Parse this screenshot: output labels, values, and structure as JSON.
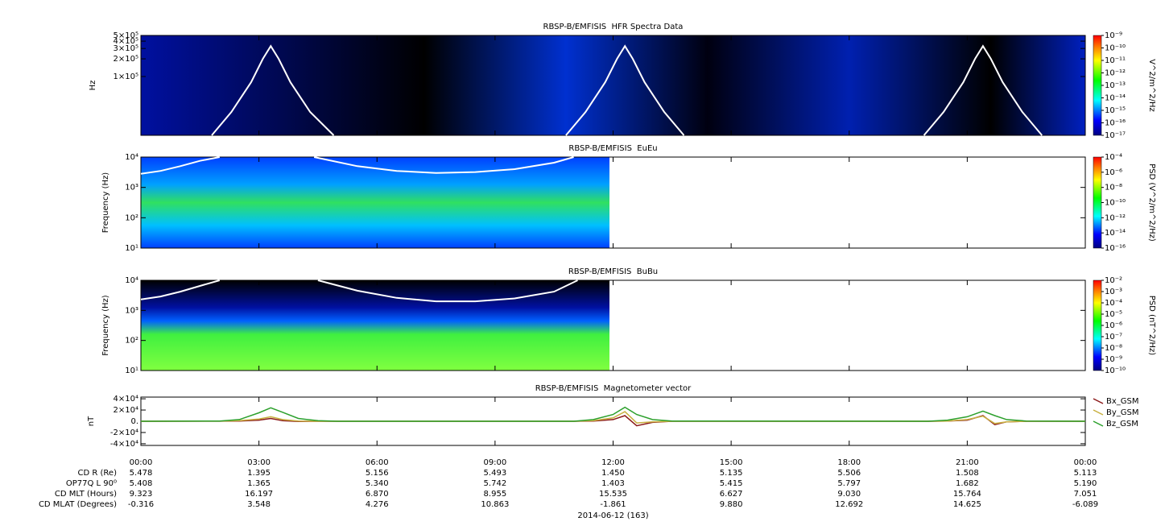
{
  "time_axis": {
    "xlim": [
      0,
      24
    ],
    "xticks": [
      {
        "value": 0,
        "label": "00:00"
      },
      {
        "value": 3,
        "label": "03:00"
      },
      {
        "value": 6,
        "label": "06:00"
      },
      {
        "value": 9,
        "label": "09:00"
      },
      {
        "value": 12,
        "label": "12:00"
      },
      {
        "value": 15,
        "label": "15:00"
      },
      {
        "value": 18,
        "label": "18:00"
      },
      {
        "value": 21,
        "label": "21:00"
      },
      {
        "value": 24,
        "label": "00:00"
      }
    ],
    "ephemeris": [
      {
        "label": "CD R (Re)",
        "values": [
          "5.478",
          "1.395",
          "5.156",
          "5.493",
          "1.450",
          "5.135",
          "5.506",
          "1.508",
          "5.113"
        ]
      },
      {
        "label": "OP77Q L 90⁰",
        "values": [
          "5.408",
          "1.365",
          "5.340",
          "5.742",
          "1.403",
          "5.415",
          "5.797",
          "1.682",
          "5.190"
        ]
      },
      {
        "label": "CD MLT (Hours)",
        "values": [
          "9.323",
          "16.197",
          "6.870",
          "8.955",
          "15.535",
          "6.627",
          "9.030",
          "15.764",
          "7.051"
        ]
      },
      {
        "label": "CD MLAT (Degrees)",
        "values": [
          "-0.316",
          "3.548",
          "4.276",
          "10.863",
          "-1.861",
          "9.880",
          "12.692",
          "14.625",
          "-6.089"
        ]
      }
    ],
    "date": "2014-06-12 (163)"
  },
  "chart_data": [
    {
      "type": "spectrogram",
      "title": "RBSP-B/EMFISIS  HFR Spectra Data",
      "ylabel": "Hz",
      "log_y": true,
      "ylim": [
        10000,
        500000
      ],
      "yticks": [
        {
          "value": 100000,
          "label": "1×10⁵"
        },
        {
          "value": 200000,
          "label": "2×10⁵"
        },
        {
          "value": 300000,
          "label": "3×10⁵"
        },
        {
          "value": 400000,
          "label": "4×10⁵"
        },
        {
          "value": 500000,
          "label": "5×10⁵"
        }
      ],
      "zlabel": "V^2/m^2/Hz",
      "zlim": [
        1e-17,
        1e-09
      ],
      "zticks": [
        {
          "value": 1e-09,
          "label": "10⁻⁹"
        },
        {
          "value": 1e-10,
          "label": "10⁻¹⁰"
        },
        {
          "value": 1e-11,
          "label": "10⁻¹¹"
        },
        {
          "value": 1e-12,
          "label": "10⁻¹²"
        },
        {
          "value": 1e-13,
          "label": "10⁻¹³"
        },
        {
          "value": 1e-14,
          "label": "10⁻¹⁴"
        },
        {
          "value": 1e-15,
          "label": "10⁻¹⁵"
        },
        {
          "value": 1e-16,
          "label": "10⁻¹⁶"
        },
        {
          "value": 1e-17,
          "label": "10⁻¹⁷"
        }
      ],
      "curve": {
        "color": "#ffffff",
        "x": [
          1.8,
          2.3,
          2.8,
          3.1,
          3.3,
          3.5,
          3.8,
          4.3,
          4.9,
          8,
          10.8,
          11.3,
          11.8,
          12.1,
          12.3,
          12.5,
          12.8,
          13.3,
          13.8,
          17,
          19.9,
          20.4,
          20.9,
          21.2,
          21.4,
          21.6,
          21.9,
          22.4,
          22.9
        ],
        "values": [
          10000,
          25000,
          80000,
          200000,
          330000,
          200000,
          80000,
          25000,
          10000,
          null,
          10000,
          25000,
          80000,
          200000,
          330000,
          200000,
          80000,
          25000,
          10000,
          null,
          10000,
          25000,
          80000,
          200000,
          330000,
          200000,
          80000,
          25000,
          10000
        ]
      }
    },
    {
      "type": "spectrogram",
      "title": "RBSP-B/EMFISIS  EuEu",
      "ylabel": "Frequency (Hz)",
      "log_y": true,
      "ylim": [
        10,
        10000
      ],
      "yticks": [
        {
          "value": 10,
          "label": "10¹"
        },
        {
          "value": 100,
          "label": "10²"
        },
        {
          "value": 1000,
          "label": "10³"
        },
        {
          "value": 10000,
          "label": "10⁴"
        }
      ],
      "zlabel": "PSD (V^2/m^2/Hz)",
      "zlim": [
        1e-16,
        0.0001
      ],
      "zticks": [
        {
          "value": 0.0001,
          "label": "10⁻⁴"
        },
        {
          "value": 1e-06,
          "label": "10⁻⁶"
        },
        {
          "value": 1e-08,
          "label": "10⁻⁸"
        },
        {
          "value": 1e-10,
          "label": "10⁻¹⁰"
        },
        {
          "value": 1e-12,
          "label": "10⁻¹²"
        },
        {
          "value": 1e-14,
          "label": "10⁻¹⁴"
        },
        {
          "value": 1e-16,
          "label": "10⁻¹⁶"
        }
      ],
      "curve": {
        "color": "#ffffff",
        "x": [
          0,
          0.5,
          1,
          1.5,
          2.0,
          3,
          4.4,
          5.5,
          6.5,
          7.5,
          8.5,
          9.5,
          10.5,
          11.0
        ],
        "values": [
          2800,
          3500,
          5000,
          7500,
          10000,
          null,
          10000,
          5000,
          3500,
          3000,
          3200,
          4000,
          6500,
          10000
        ]
      }
    },
    {
      "type": "spectrogram",
      "title": "RBSP-B/EMFISIS  BuBu",
      "ylabel": "Frequency (Hz)",
      "log_y": true,
      "ylim": [
        10,
        10000
      ],
      "yticks": [
        {
          "value": 10,
          "label": "10¹"
        },
        {
          "value": 100,
          "label": "10²"
        },
        {
          "value": 1000,
          "label": "10³"
        },
        {
          "value": 10000,
          "label": "10⁴"
        }
      ],
      "zlabel": "PSD (nT^2/Hz)",
      "zlim": [
        1e-10,
        0.01
      ],
      "zticks": [
        {
          "value": 0.01,
          "label": "10⁻²"
        },
        {
          "value": 0.001,
          "label": "10⁻³"
        },
        {
          "value": 0.0001,
          "label": "10⁻⁴"
        },
        {
          "value": 1e-05,
          "label": "10⁻⁵"
        },
        {
          "value": 1e-06,
          "label": "10⁻⁶"
        },
        {
          "value": 1e-07,
          "label": "10⁻⁷"
        },
        {
          "value": 1e-08,
          "label": "10⁻⁸"
        },
        {
          "value": 1e-09,
          "label": "10⁻⁹"
        },
        {
          "value": 1e-10,
          "label": "10⁻¹⁰"
        }
      ],
      "curve": {
        "color": "#ffffff",
        "x": [
          0,
          0.5,
          1,
          1.5,
          2.0,
          3,
          4.5,
          5.5,
          6.5,
          7.5,
          8.5,
          9.5,
          10.5,
          11.1
        ],
        "values": [
          2300,
          2900,
          4200,
          6500,
          10000,
          null,
          10000,
          4500,
          2600,
          2000,
          2000,
          2500,
          4200,
          10000
        ]
      }
    },
    {
      "type": "line",
      "title": "RBSP-B/EMFISIS  Magnetometer vector",
      "ylabel": "nT",
      "log_y": false,
      "ylim": [
        -43000,
        43000
      ],
      "yticks": [
        {
          "value": -40000,
          "label": "-4×10⁴"
        },
        {
          "value": -20000,
          "label": "-2×10⁴"
        },
        {
          "value": 0,
          "label": "0."
        },
        {
          "value": 20000,
          "label": "2×10⁴"
        },
        {
          "value": 40000,
          "label": "4×10⁴"
        }
      ],
      "legend": "right",
      "x": [
        0,
        2,
        2.5,
        3,
        3.3,
        3.6,
        4,
        4.5,
        5,
        11,
        11.5,
        12,
        12.3,
        12.6,
        13,
        13.5,
        20,
        20.5,
        21,
        21.4,
        21.7,
        22,
        22.5,
        24
      ],
      "series": [
        {
          "name": "Bx_GSM",
          "color": "#8b1a1a",
          "values": [
            0,
            100,
            500,
            2000,
            5000,
            1000,
            -500,
            0,
            0,
            0,
            500,
            3000,
            10000,
            -8000,
            -2000,
            0,
            0,
            300,
            2000,
            10000,
            -6000,
            -1000,
            0,
            0
          ]
        },
        {
          "name": "By_GSM",
          "color": "#c8b040",
          "values": [
            0,
            200,
            1000,
            4000,
            8000,
            3000,
            500,
            0,
            0,
            0,
            1000,
            6000,
            17000,
            -3000,
            -1000,
            0,
            0,
            500,
            3000,
            9000,
            -4000,
            -1000,
            0,
            0
          ]
        },
        {
          "name": "Bz_GSM",
          "color": "#2ca02c",
          "values": [
            0,
            500,
            3000,
            15000,
            24000,
            16000,
            5000,
            1000,
            0,
            0,
            3000,
            12000,
            25000,
            12000,
            3000,
            500,
            0,
            2000,
            8000,
            18000,
            10000,
            3000,
            500,
            0
          ]
        }
      ]
    }
  ]
}
